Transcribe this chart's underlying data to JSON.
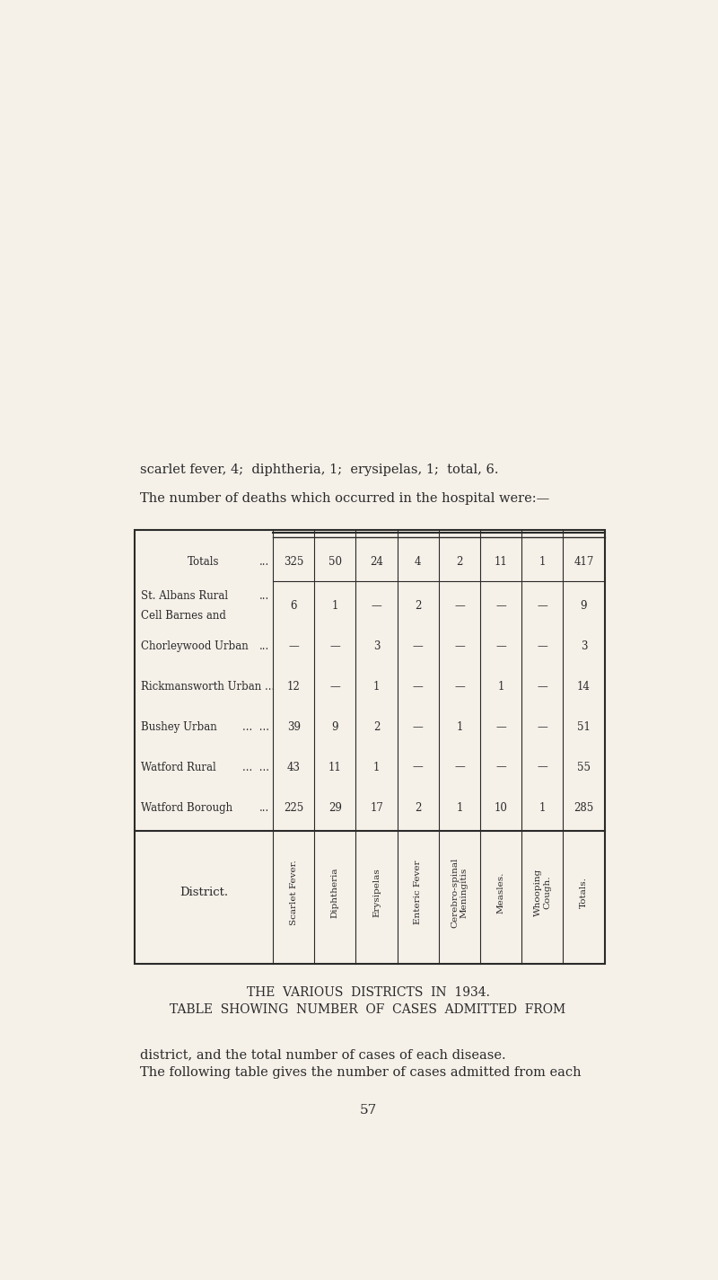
{
  "page_number": "57",
  "bg_color": "#F5F0E8",
  "intro_text_line1": "The following table gives the number of cases admitted from each",
  "intro_text_line2": "district, and the total number of cases of each disease.",
  "table_title_line1": "TABLE  SHOWING  NUMBER  OF  CASES  ADMITTED  FROM",
  "table_title_line2": "THE  VARIOUS  DISTRICTS  IN  1934.",
  "col_headers": [
    "Scarlet Fever.",
    "Diphtheria",
    "Erysipelas",
    "Enteric Fever",
    "Cerebro-spinal\nMeningitis",
    "Measles.",
    "Whooping\nCough.",
    "Totals."
  ],
  "district_col_header": "District.",
  "rows": [
    {
      "district": "Watford Borough",
      "dots": "...",
      "values": [
        "225",
        "29",
        "17",
        "2",
        "1",
        "10",
        "1",
        "285"
      ]
    },
    {
      "district": "Watford Rural",
      "dots": "...  ...",
      "values": [
        "43",
        "11",
        "1",
        "—",
        "—",
        "—",
        "—",
        "55"
      ]
    },
    {
      "district": "Bushey Urban",
      "dots": "...  ...",
      "values": [
        "39",
        "9",
        "2",
        "—",
        "1",
        "—",
        "—",
        "51"
      ]
    },
    {
      "district": "Rickmansworth Urban ...",
      "dots": "",
      "values": [
        "12",
        "—",
        "1",
        "—",
        "—",
        "1",
        "—",
        "14"
      ]
    },
    {
      "district": "Chorleywood Urban",
      "dots": "...",
      "values": [
        "—",
        "—",
        "3",
        "—",
        "—",
        "—",
        "—",
        "3"
      ]
    },
    {
      "district": "Cell Barnes and\nSt. Albans Rural",
      "dots": "...",
      "values": [
        "6",
        "1",
        "—",
        "2",
        "—",
        "—",
        "—",
        "9"
      ]
    }
  ],
  "totals_row": {
    "label": "Totals",
    "dots": "...",
    "values": [
      "325",
      "50",
      "24",
      "4",
      "2",
      "11",
      "1",
      "417"
    ]
  },
  "footer_line1": "The number of deaths which occurred in the hospital were:—",
  "footer_line2": "scarlet fever, 4;  diphtheria, 1;  erysipelas, 1;  total, 6.",
  "text_color": "#2a2a2a"
}
